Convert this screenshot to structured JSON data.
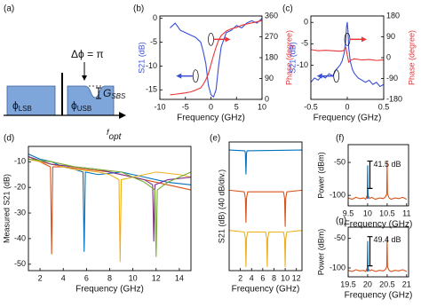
{
  "diagram": {
    "label": "(a)",
    "phi_lsb": {
      "symbol": "ϕ",
      "sub": "LSB"
    },
    "phi_usb": {
      "symbol": "ϕ",
      "sub": "USB"
    },
    "delta_phi": "Δϕ = π",
    "gain": {
      "symbol": "G",
      "sub": "SBS"
    },
    "axis": {
      "symbol": "f",
      "sub": "opt"
    }
  },
  "chart_data": [
    {
      "type": "line",
      "label": "(b)",
      "xlabel": "Frequency (GHz)",
      "ylabel": "S21 (dB)",
      "y2label": "Phase (degree)",
      "xlim": [
        -10,
        10
      ],
      "xticks": [
        -10,
        -5,
        0,
        5,
        10
      ],
      "ylim": [
        -17,
        0.5
      ],
      "yticks": [
        0,
        -5,
        -10,
        -15
      ],
      "y2lim": [
        0,
        360
      ],
      "y2ticks": [
        0,
        90,
        180,
        270,
        360
      ],
      "series": [
        {
          "color": "#3a4fd6",
          "x": [
            -8,
            -7,
            -6,
            -5,
            -4,
            -3,
            -2,
            -1.5,
            -1,
            -0.5,
            0,
            0.5,
            1,
            1.5,
            2,
            3,
            4,
            5,
            6,
            7,
            8,
            9,
            10
          ],
          "values": [
            -2,
            -1,
            -2.5,
            -3,
            -3.5,
            -4,
            -5,
            -7,
            -9.5,
            -14,
            -16,
            -16.5,
            -15,
            -10,
            -6,
            -3,
            -2.5,
            -1.5,
            -2,
            -1,
            -0.5,
            -1,
            0
          ]
        },
        {
          "color": "#e8363a",
          "axis": "y2",
          "x": [
            -8,
            -7,
            -6,
            -5,
            -4,
            -3,
            -2,
            -1.5,
            -1,
            -0.5,
            0,
            0.5,
            1,
            1.5,
            2,
            3,
            4,
            5,
            6,
            7,
            8,
            9,
            10
          ],
          "values": [
            20,
            22,
            25,
            28,
            32,
            40,
            50,
            65,
            85,
            110,
            150,
            190,
            225,
            255,
            275,
            295,
            305,
            310,
            320,
            325,
            330,
            335,
            340
          ]
        }
      ]
    },
    {
      "type": "line",
      "label": "(c)",
      "xlabel": "Frequency (GHz)",
      "ylabel": "S21 (dB)",
      "y2label": "Phase (degree)",
      "xlim": [
        -0.5,
        0.5
      ],
      "xticks": [
        -0.5,
        0,
        0.5
      ],
      "ylim": [
        -18,
        1.5
      ],
      "yticks": [
        0,
        -5,
        -10
      ],
      "y2lim": [
        -180,
        180
      ],
      "y2ticks": [
        -180,
        -90,
        0,
        90,
        180
      ],
      "series": [
        {
          "color": "#3a4fd6",
          "x": [
            -0.5,
            -0.45,
            -0.4,
            -0.35,
            -0.3,
            -0.25,
            -0.2,
            -0.15,
            -0.1,
            -0.07,
            -0.04,
            -0.02,
            -0.01,
            0,
            0.01,
            0.02,
            0.04,
            0.07,
            0.1,
            0.15,
            0.2,
            0.25,
            0.3,
            0.35,
            0.4,
            0.45,
            0.5
          ],
          "values": [
            -14,
            -13,
            -13.5,
            -12.5,
            -13,
            -12,
            -12.5,
            -11,
            -10,
            -9,
            -7,
            -4,
            -1,
            0,
            -2,
            -6,
            -9,
            -11,
            -12,
            -13,
            -13.5,
            -14,
            -13.5,
            -14.5,
            -14,
            -15,
            -14.5
          ]
        },
        {
          "color": "#e8363a",
          "axis": "y2",
          "x": [
            -0.5,
            -0.4,
            -0.3,
            -0.2,
            -0.1,
            -0.05,
            -0.02,
            0,
            0.02,
            0.05,
            0.1,
            0.2,
            0.3,
            0.4,
            0.5
          ],
          "values": [
            35,
            30,
            32,
            30,
            28,
            30,
            45,
            10,
            -20,
            -10,
            -5,
            -10,
            -8,
            -12,
            -10
          ]
        }
      ]
    },
    {
      "type": "line",
      "label": "(d)",
      "xlabel": "Frequency (GHz)",
      "ylabel": "Measured S21 (dB)",
      "xlim": [
        1,
        15
      ],
      "xticks": [
        2,
        4,
        6,
        8,
        10,
        12,
        14
      ],
      "ylim": [
        -52.5,
        -4
      ],
      "yticks": [
        -10,
        -20,
        -30,
        -40,
        -50
      ],
      "series": [
        {
          "color": "#d95319",
          "x": [
            1,
            2,
            2.9,
            3,
            3.1,
            4,
            6,
            8,
            10,
            12,
            14,
            15
          ],
          "values": [
            -8,
            -10,
            -12,
            -46,
            -12,
            -12,
            -13,
            -14,
            -16,
            -18,
            -20,
            -21
          ]
        },
        {
          "color": "#0072bd",
          "x": [
            1,
            2,
            3,
            4,
            5,
            5.7,
            5.8,
            5.9,
            7,
            9,
            11,
            13,
            15
          ],
          "values": [
            -7,
            -9,
            -10,
            -12,
            -13,
            -14,
            -45,
            -14,
            -15,
            -14,
            -16,
            -18,
            -19
          ]
        },
        {
          "color": "#edb120",
          "x": [
            1,
            3,
            5,
            7,
            8,
            8.8,
            8.9,
            9,
            10,
            12,
            14,
            15
          ],
          "values": [
            -9,
            -11,
            -13,
            -14,
            -15,
            -17,
            -49,
            -17,
            -16,
            -14,
            -15,
            -16
          ]
        },
        {
          "color": "#7e2f8e",
          "x": [
            1,
            3,
            5,
            7,
            9,
            11,
            11.7,
            11.8,
            11.9,
            13,
            15
          ],
          "values": [
            -8,
            -11,
            -12,
            -13,
            -15,
            -17,
            -19,
            -41,
            -19,
            -17,
            -16
          ]
        },
        {
          "color": "#77ac30",
          "x": [
            1,
            3,
            5,
            7,
            9,
            11,
            11.9,
            12,
            12.1,
            13,
            15
          ],
          "values": [
            -9,
            -10,
            -12,
            -13,
            -14,
            -18,
            -21,
            -47,
            -21,
            -18,
            -14
          ]
        }
      ]
    },
    {
      "type": "line",
      "label": "(e)",
      "xlabel": "Frequency (GHz)",
      "ylabel": "S21 (dB) (40 dB/div.)",
      "xlim": [
        0,
        13
      ],
      "xticks": [
        2,
        4,
        6,
        8,
        10,
        12
      ],
      "ylim": [
        -150,
        10
      ],
      "series": [
        {
          "color": "#0072bd",
          "x": [
            0,
            2.8,
            2.9,
            3,
            3.1,
            3.2,
            13
          ],
          "values": [
            0,
            -1,
            -4,
            -30,
            -4,
            -1,
            0
          ]
        },
        {
          "color": "#d95319",
          "x": [
            0,
            2.7,
            2.9,
            3,
            3.1,
            3.3,
            9.7,
            9.9,
            10,
            10.1,
            10.3,
            13
          ],
          "values": [
            -50,
            -52,
            -60,
            -90,
            -60,
            -52,
            -52,
            -60,
            -95,
            -60,
            -52,
            -50
          ]
        },
        {
          "color": "#edb120",
          "x": [
            0,
            2.7,
            2.9,
            3,
            3.1,
            3.3,
            6.5,
            6.7,
            6.8,
            6.9,
            7.1,
            9.7,
            9.9,
            10,
            10.1,
            10.3,
            13
          ],
          "values": [
            -100,
            -102,
            -110,
            -145,
            -110,
            -102,
            -102,
            -110,
            -145,
            -110,
            -102,
            -102,
            -110,
            -145,
            -110,
            -102,
            -100
          ]
        }
      ]
    },
    {
      "type": "line",
      "label": "(f)",
      "xlabel": "Frequency (GHz)",
      "ylabel": "Power (dBm)",
      "annotation": "41.5 dB",
      "xlim": [
        9.5,
        11.05
      ],
      "xticks": [
        9.5,
        10,
        10.5,
        11
      ],
      "ylim": [
        -116,
        -23
      ],
      "yticks": [
        -50,
        -100
      ],
      "series": [
        {
          "color": "#d95319",
          "x": [
            9.5,
            9.6,
            9.7,
            9.8,
            9.9,
            9.95,
            9.99,
            10,
            10.01,
            10.05,
            10.1,
            10.2,
            10.3,
            10.4,
            10.45,
            10.49,
            10.5,
            10.51,
            10.55,
            10.6,
            10.7,
            10.8,
            10.9,
            11
          ],
          "values": [
            -104,
            -106,
            -103,
            -105,
            -104,
            -106,
            -100,
            -89.5,
            -100,
            -105,
            -103,
            -106,
            -104,
            -105,
            -103,
            -98,
            -48,
            -98,
            -104,
            -106,
            -104,
            -105,
            -103,
            -106
          ]
        },
        {
          "color": "#0072bd",
          "x": [
            9.99,
            10,
            10.01
          ],
          "values": [
            -105,
            -55,
            -105
          ]
        }
      ]
    },
    {
      "type": "line",
      "label": "(g)",
      "xlabel": "Frequency (GHz)",
      "ylabel": "Power (dBm)",
      "annotation": "49.4 dB",
      "xlim": [
        19.5,
        21.05
      ],
      "xticks": [
        19.5,
        20,
        20.5,
        21
      ],
      "ylim": [
        -115,
        -31
      ],
      "yticks": [
        -50,
        -100
      ],
      "series": [
        {
          "color": "#d95319",
          "x": [
            19.5,
            19.6,
            19.7,
            19.8,
            19.9,
            19.95,
            19.99,
            20,
            20.01,
            20.05,
            20.1,
            20.2,
            20.3,
            20.4,
            20.45,
            20.49,
            20.5,
            20.51,
            20.55,
            20.6,
            20.7,
            20.8,
            20.9,
            21
          ],
          "values": [
            -104,
            -106,
            -103,
            -105,
            -104,
            -106,
            -100,
            -96.4,
            -100,
            -105,
            -103,
            -106,
            -104,
            -105,
            -103,
            -98,
            -47,
            -98,
            -104,
            -106,
            -104,
            -105,
            -103,
            -106
          ]
        },
        {
          "color": "#0072bd",
          "x": [
            19.99,
            20,
            20.01
          ],
          "values": [
            -106,
            -55,
            -106
          ]
        }
      ]
    }
  ]
}
